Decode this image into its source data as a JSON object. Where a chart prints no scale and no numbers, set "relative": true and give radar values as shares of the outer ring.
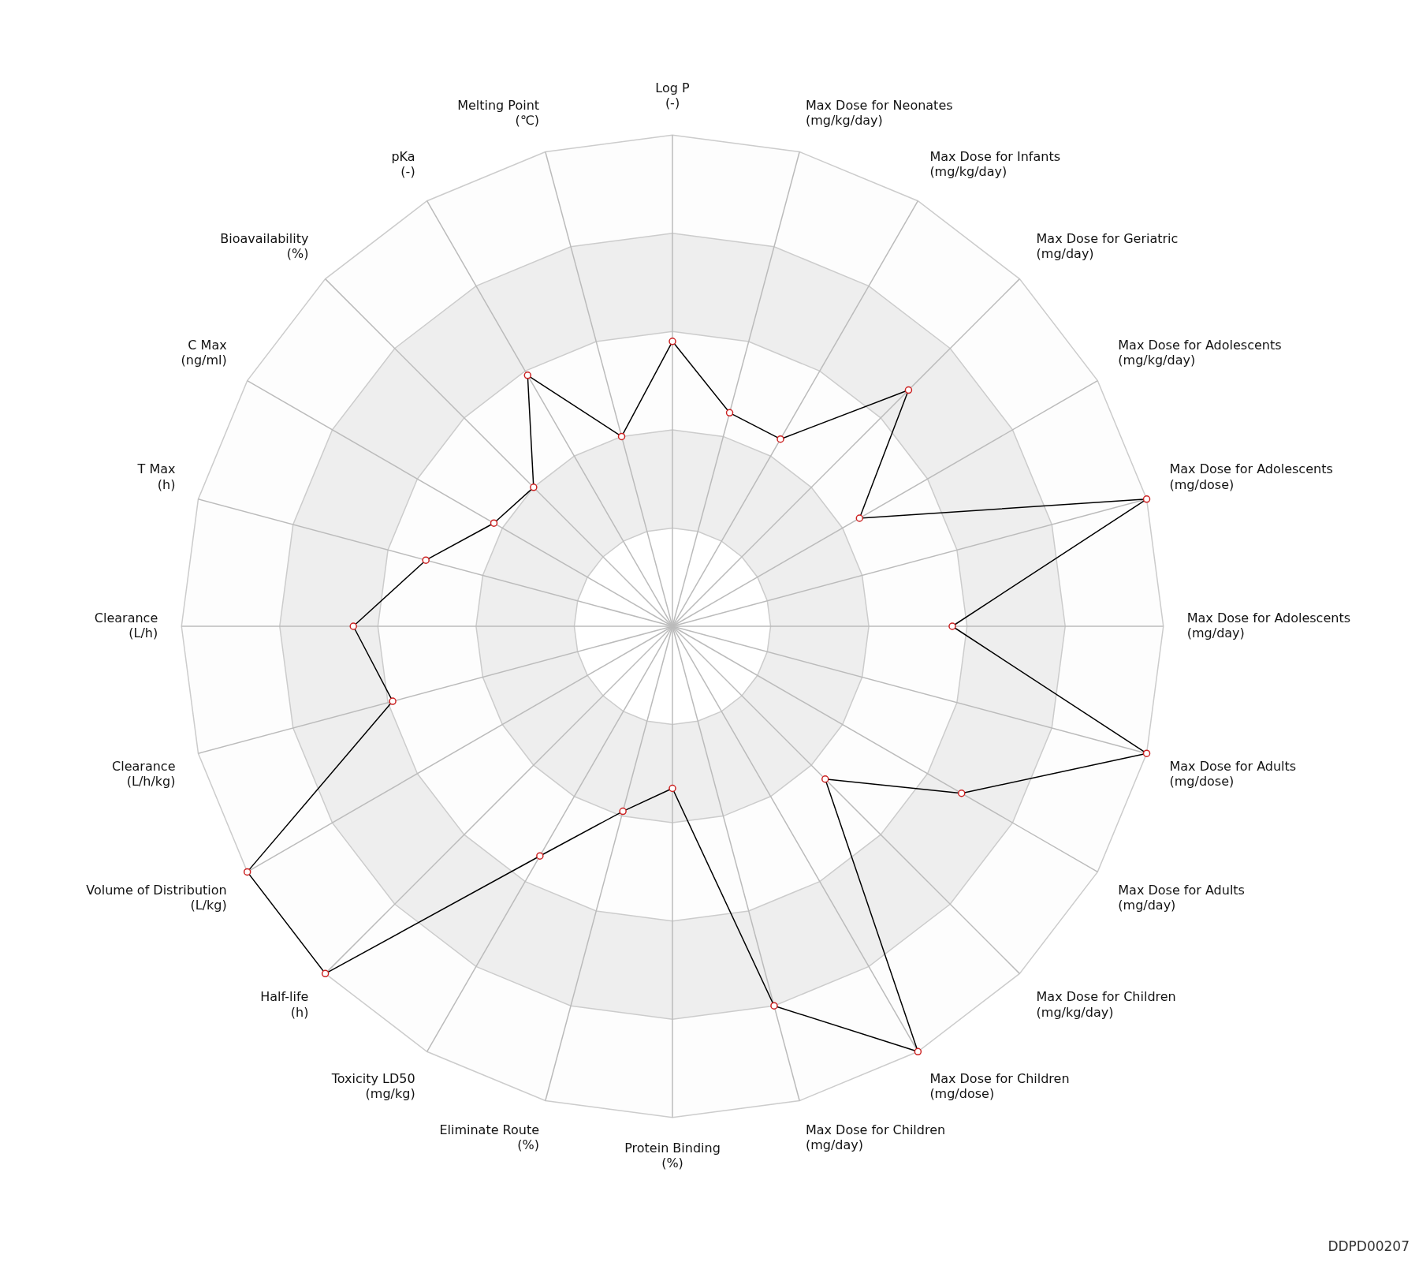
{
  "chart_data": {
    "type": "radar",
    "relative": true,
    "grid": true,
    "legend": false,
    "marker": "circle",
    "line_style": "solid",
    "categories": [
      "Log P\n(-)",
      "Max Dose for Neonates\n(mg/kg/day)",
      "Max Dose for Infants\n(mg/kg/day)",
      "Max Dose for Geriatric\n(mg/day)",
      "Max Dose for Adolescents\n(mg/kg/day)",
      "Max Dose for Adolescents\n(mg/dose)",
      "Max Dose for Adolescents\n(mg/day)",
      "Max Dose for Adults\n(mg/dose)",
      "Max Dose for Adults\n(mg/day)",
      "Max Dose for Children\n(mg/kg/day)",
      "Max Dose for Children\n(mg/dose)",
      "Max Dose for Children\n(mg/day)",
      "Protein Binding\n(%)",
      "Eliminate Route\n(%)",
      "Toxicity LD50\n(mg/kg)",
      "Half-life\n(h)",
      "Volume of Distribution\n(L/kg)",
      "Clearance\n(L/h/kg)",
      "Clearance\n(L/h)",
      "T Max\n(h)",
      "C Max\n(ng/ml)",
      "Bioavailability\n(%)",
      "pKa\n(-)",
      "Melting Point\n(℃)"
    ],
    "series": [
      {
        "color": "#000000",
        "values": [
          0.58,
          0.45,
          0.44,
          0.68,
          0.44,
          1,
          0.57,
          1,
          0.68,
          0.44,
          1,
          0.8,
          0.33,
          0.39,
          0.54,
          1,
          1,
          0.59,
          0.65,
          0.52,
          0.42,
          0.4,
          0.59,
          0.4
        ]
      }
    ],
    "annotations": [
      "DDPD00207"
    ]
  }
}
